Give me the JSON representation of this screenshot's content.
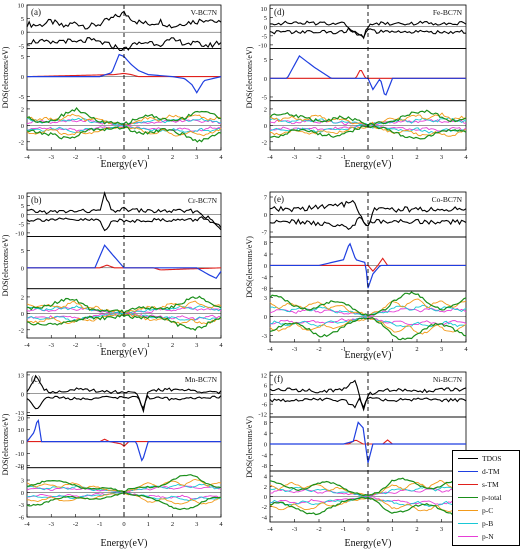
{
  "figure": {
    "xlabel": "Energy(eV)",
    "ylabel": "DOS(electrons/eV)",
    "fermi_level_eV": 0
  },
  "legend": {
    "items": [
      {
        "label": "TDOS",
        "color": "#000000"
      },
      {
        "label": "d-TM",
        "color": "#1f3fe0"
      },
      {
        "label": "s-TM",
        "color": "#e0201c"
      },
      {
        "label": "p-total",
        "color": "#1a8f1a"
      },
      {
        "label": "p-C",
        "color": "#f29a1a"
      },
      {
        "label": "p-B",
        "color": "#19c8d6"
      },
      {
        "label": "p-N",
        "color": "#e63fd6"
      }
    ]
  },
  "chart_data": [
    {
      "type": "line",
      "panel": "(a)",
      "compound": "V-BC7N",
      "xlim": [
        -4,
        4
      ],
      "xticks": [
        "-4",
        "-3",
        "-2",
        "-1",
        "0",
        "1",
        "2",
        "3",
        "4"
      ],
      "subplots": [
        {
          "yticks": [
            "10",
            "5",
            "0",
            "-5"
          ],
          "ylim": [
            -6,
            10
          ]
        },
        {
          "yticks": [
            "5",
            "0",
            "-5"
          ],
          "ylim": [
            -6,
            7
          ]
        },
        {
          "yticks": [
            "2",
            "0",
            "-2"
          ],
          "ylim": [
            -3,
            3
          ]
        }
      ],
      "series": [
        {
          "name": "TDOS",
          "x": [
            -4,
            -3.5,
            -3,
            -2.5,
            -2,
            -1.5,
            -1,
            -0.5,
            0,
            0.5,
            1,
            1.5,
            2,
            2.5,
            3,
            3.5,
            4
          ],
          "values": [
            3,
            2.5,
            4,
            2,
            3.5,
            2,
            3,
            5,
            7,
            4,
            3,
            4,
            2,
            3.5,
            4,
            5,
            3
          ]
        },
        {
          "name": "d-TM",
          "x": [
            -4,
            -1,
            -0.5,
            -0.2,
            0,
            0.3,
            0.6,
            1,
            2,
            2.5,
            2.8,
            3,
            3.3,
            4
          ],
          "values": [
            0,
            0,
            1,
            5.5,
            5,
            3,
            1.5,
            0.5,
            0,
            -0.5,
            -2,
            -4,
            -1,
            0
          ]
        },
        {
          "name": "s-TM",
          "x": [
            -4,
            -0.4,
            0,
            0.3,
            0.6,
            4
          ],
          "values": [
            0,
            0.5,
            0.8,
            0.5,
            0,
            0
          ]
        },
        {
          "name": "p-total",
          "x": [
            -4,
            -3,
            -2,
            -1,
            0,
            1,
            2,
            3,
            4
          ],
          "values": [
            1.5,
            1,
            1.8,
            1,
            0.2,
            1.2,
            1.5,
            1.8,
            1
          ]
        }
      ]
    },
    {
      "type": "line",
      "panel": "(b)",
      "compound": "Cr-BC7N",
      "xlim": [
        -4,
        4
      ],
      "xticks": [
        "-4",
        "-3",
        "-2",
        "-1",
        "0",
        "1",
        "2",
        "3",
        "4"
      ],
      "subplots": [
        {
          "yticks": [
            "10",
            "5",
            "0",
            "-5",
            "-10"
          ],
          "ylim": [
            -12,
            12
          ]
        },
        {
          "yticks": [
            "5",
            "0"
          ],
          "ylim": [
            -6,
            9
          ]
        },
        {
          "yticks": [
            "2",
            "0",
            "-2"
          ],
          "ylim": [
            -3,
            3
          ]
        }
      ],
      "series": [
        {
          "name": "TDOS",
          "x": [
            -4,
            -3,
            -2,
            -1,
            -0.8,
            -0.5,
            0,
            1,
            2,
            3,
            3.5,
            4
          ],
          "values": [
            2,
            1.5,
            2,
            2,
            11,
            2,
            3,
            2,
            2,
            2,
            -2,
            -8
          ]
        },
        {
          "name": "d-TM",
          "x": [
            -4,
            -1.2,
            -0.8,
            -0.5,
            0,
            3,
            3.5,
            3.8,
            4
          ],
          "values": [
            0,
            0,
            6.5,
            4,
            0,
            0,
            -2,
            -3,
            -1
          ]
        },
        {
          "name": "s-TM",
          "x": [
            -4,
            -1,
            -0.7,
            -0.4,
            1.2,
            1.5,
            4
          ],
          "values": [
            0,
            0,
            0.8,
            0,
            0,
            -0.6,
            0
          ]
        },
        {
          "name": "p-total",
          "x": [
            -4,
            -3,
            -2,
            -1,
            0,
            1,
            2,
            3,
            4
          ],
          "values": [
            1.5,
            1.2,
            1.8,
            0.8,
            0.2,
            1,
            1.5,
            1.8,
            1.2
          ]
        }
      ]
    },
    {
      "type": "line",
      "panel": "(c)",
      "compound": "Mn-BC7N",
      "xlim": [
        -4,
        4
      ],
      "xticks": [
        "-4",
        "-3",
        "-2",
        "-1",
        "0",
        "1",
        "2",
        "3",
        "4"
      ],
      "subplots": [
        {
          "yticks": [
            "13",
            "0",
            "-13"
          ],
          "ylim": [
            -15,
            15
          ]
        },
        {
          "yticks": [
            "20",
            "10",
            "0",
            "-10",
            "-20"
          ],
          "ylim": [
            -22,
            22
          ]
        },
        {
          "yticks": [
            "6",
            "3",
            "0",
            "-3",
            "-6"
          ],
          "ylim": [
            -6,
            6
          ]
        }
      ],
      "series": [
        {
          "name": "TDOS",
          "x": [
            -4,
            -3.6,
            -3.3,
            -3,
            -2,
            -1,
            0,
            0.5,
            0.8,
            1,
            2,
            3,
            4
          ],
          "values": [
            2,
            13,
            3,
            1,
            3,
            2,
            1,
            2,
            -12,
            2,
            3,
            2,
            1
          ]
        },
        {
          "name": "d-TM",
          "x": [
            -4,
            -3.7,
            -3.55,
            -3.4,
            0,
            0.5,
            0.75,
            1,
            4
          ],
          "values": [
            0,
            8,
            20,
            0,
            0,
            0,
            -17,
            0,
            0
          ]
        },
        {
          "name": "s-TM",
          "x": [
            -4,
            -1,
            -0.8,
            -0.6,
            -0.1,
            0,
            0.2,
            4
          ],
          "values": [
            0,
            0,
            2,
            0,
            -2,
            -4,
            0,
            0
          ]
        },
        {
          "name": "p-total",
          "x": [
            -4,
            -3,
            -2,
            -1,
            0,
            1,
            2,
            3,
            4
          ],
          "values": [
            3,
            2.5,
            3,
            1.5,
            0.2,
            3,
            3.5,
            4,
            3
          ]
        }
      ]
    },
    {
      "type": "line",
      "panel": "(d)",
      "compound": "Fe-BC7N",
      "xlim": [
        -4,
        4
      ],
      "xticks": [
        "-4",
        "-3",
        "-2",
        "-1",
        "0",
        "1",
        "2",
        "3",
        "4"
      ],
      "subplots": [
        {
          "yticks": [
            "10",
            "5",
            "0",
            "-5",
            "-10"
          ],
          "ylim": [
            -12,
            12
          ]
        },
        {
          "yticks": [
            "5",
            "0",
            "-5"
          ],
          "ylim": [
            -6,
            8
          ]
        },
        {
          "yticks": [
            "2",
            "0",
            "-2"
          ],
          "ylim": [
            -3,
            3
          ]
        }
      ],
      "series": [
        {
          "name": "TDOS",
          "x": [
            -4,
            -3,
            -2,
            -1,
            -0.2,
            0,
            0.3,
            1,
            2,
            3,
            4
          ],
          "values": [
            2,
            2,
            2,
            2,
            -6,
            0,
            2,
            2,
            2,
            2,
            2
          ]
        },
        {
          "name": "d-TM",
          "x": [
            -4,
            -3.3,
            -2.8,
            -2.2,
            -1.5,
            0,
            0.2,
            0.5,
            0.7,
            1,
            4
          ],
          "values": [
            0,
            0,
            6,
            3,
            0,
            0,
            -3,
            0,
            -5,
            0,
            0
          ]
        },
        {
          "name": "s-TM",
          "x": [
            -4,
            -0.5,
            -0.3,
            -0.1,
            0.1,
            4
          ],
          "values": [
            0,
            0,
            2.5,
            0,
            0,
            0
          ]
        },
        {
          "name": "p-total",
          "x": [
            -4,
            -3,
            -2,
            -1,
            0,
            1,
            2,
            3,
            4
          ],
          "values": [
            1.5,
            1.2,
            1.5,
            1,
            0.2,
            1.2,
            1.5,
            1.8,
            1.2
          ]
        }
      ]
    },
    {
      "type": "line",
      "panel": "(e)",
      "compound": "Co-BC7N",
      "xlim": [
        -4,
        4
      ],
      "xticks": [
        "-4",
        "-3",
        "-2",
        "-1",
        "0",
        "1",
        "2",
        "3",
        "4"
      ],
      "subplots": [
        {
          "yticks": [
            "7",
            "0",
            "-7"
          ],
          "ylim": [
            -9,
            9
          ]
        },
        {
          "yticks": [
            "8",
            "4",
            "0",
            "-4",
            "-8"
          ],
          "ylim": [
            -9,
            10
          ]
        },
        {
          "yticks": [
            "3",
            "0",
            "-3"
          ],
          "ylim": [
            -4,
            4
          ]
        }
      ],
      "series": [
        {
          "name": "TDOS",
          "x": [
            -4,
            -3,
            -2,
            -1,
            -0.7,
            0,
            0.2,
            1,
            2,
            3,
            4
          ],
          "values": [
            2,
            2,
            3,
            4,
            6,
            -5,
            2,
            2,
            2,
            2,
            2
          ]
        },
        {
          "name": "d-TM",
          "x": [
            -4,
            -2,
            -1,
            -0.75,
            -0.5,
            -0.1,
            0,
            0.2,
            0.5,
            4
          ],
          "values": [
            0,
            0,
            2,
            8,
            2,
            1,
            -8,
            -3,
            0,
            0
          ]
        },
        {
          "name": "s-TM",
          "x": [
            -4,
            0,
            0.2,
            0.4,
            0.6,
            0.8,
            4
          ],
          "values": [
            0,
            0,
            -2,
            0,
            2.5,
            0,
            0
          ]
        },
        {
          "name": "p-total",
          "x": [
            -4,
            -3,
            -2,
            -1,
            0,
            1,
            2,
            3,
            4
          ],
          "values": [
            3,
            2.5,
            3,
            2,
            0.3,
            3,
            3.5,
            3,
            3
          ]
        }
      ]
    },
    {
      "type": "line",
      "panel": "(f)",
      "compound": "Ni-BC7N",
      "xlim": [
        -4,
        4
      ],
      "xticks": [
        "-4",
        "-3",
        "-2",
        "-1",
        "0",
        "1",
        "2",
        "3",
        "4"
      ],
      "subplots": [
        {
          "yticks": [
            "12",
            "6",
            "0",
            "-6",
            "-12"
          ],
          "ylim": [
            -14,
            14
          ]
        },
        {
          "yticks": [
            "8",
            "4",
            "0",
            "-4",
            "-8"
          ],
          "ylim": [
            -10,
            10
          ]
        },
        {
          "yticks": [
            "4",
            "2",
            "0",
            "-2",
            "-4"
          ],
          "ylim": [
            -5,
            5
          ]
        }
      ],
      "series": [
        {
          "name": "TDOS",
          "x": [
            -4,
            -3,
            -2,
            -1,
            -0.5,
            -0.2,
            0,
            0.5,
            1,
            2,
            3,
            4
          ],
          "values": [
            3,
            3,
            2,
            3,
            9,
            -10,
            0,
            2,
            3,
            2,
            3,
            3
          ]
        },
        {
          "name": "d-TM",
          "x": [
            -4,
            -1,
            -0.6,
            -0.4,
            -0.2,
            0,
            0.2,
            4
          ],
          "values": [
            0,
            0,
            1,
            8,
            6,
            -7,
            0,
            0
          ]
        },
        {
          "name": "s-TM",
          "x": [
            -4,
            -0.8,
            -0.5,
            -0.2,
            0.6,
            0.8,
            1,
            4
          ],
          "values": [
            0,
            0,
            1.5,
            0,
            0,
            1.5,
            0,
            0
          ]
        },
        {
          "name": "p-total",
          "x": [
            -4,
            -3,
            -2,
            -1,
            0,
            1,
            2,
            3,
            4
          ],
          "values": [
            3,
            3.5,
            3,
            2,
            0.3,
            3,
            3.5,
            4,
            3
          ]
        }
      ]
    }
  ]
}
